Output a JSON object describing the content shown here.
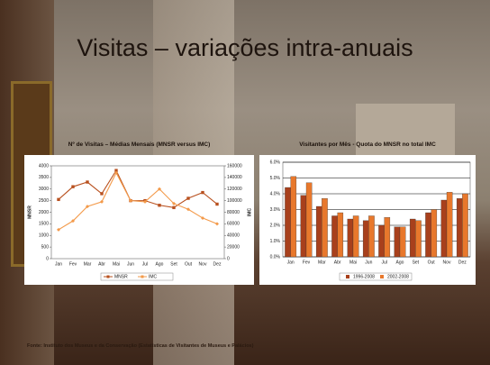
{
  "title": "Visitas – variações intra-anuais",
  "footer": "Fonte: Instituto dos Museus e da Conservação (Estatísticas de Visitantes de Museus e Palácios)",
  "chart_data": [
    {
      "type": "line",
      "title": "Nº de Visitas – Médias Mensais (MNSR versus IMC)",
      "y_label": "MNSR",
      "y2_label": "IMC",
      "categories": [
        "Jan",
        "Fev",
        "Mar",
        "Abr",
        "Mai",
        "Jun",
        "Jul",
        "Ago",
        "Set",
        "Out",
        "Nov",
        "Dez"
      ],
      "ylim": [
        0,
        4000
      ],
      "yticks": [
        0,
        500,
        1000,
        1500,
        2000,
        2500,
        3000,
        3500,
        4000
      ],
      "y2lim": [
        0,
        160000
      ],
      "y2ticks": [
        0,
        20000,
        40000,
        60000,
        80000,
        100000,
        120000,
        140000,
        160000
      ],
      "grid": false,
      "series": [
        {
          "name": "MNSR",
          "color": "#b8501e",
          "marker": "square",
          "values": [
            2550,
            3100,
            3300,
            2800,
            3800,
            2500,
            2500,
            2300,
            2200,
            2600,
            2850,
            2350
          ]
        },
        {
          "name": "IMC",
          "color": "#f39a4a",
          "marker": "diamond",
          "axis": "y2",
          "values": [
            50000,
            65000,
            90000,
            98000,
            148000,
            100000,
            98000,
            120000,
            95000,
            85000,
            70000,
            60000
          ]
        }
      ]
    },
    {
      "type": "bar",
      "title": "Visitantes por Mês - Quota do MNSR no total IMC",
      "categories": [
        "Jan",
        "Fev",
        "Mar",
        "Abr",
        "Mai",
        "Jun",
        "Jul",
        "Ago",
        "Set",
        "Out",
        "Nov",
        "Dez"
      ],
      "ylim": [
        0,
        6
      ],
      "yticks": [
        {
          "value": 0,
          "label": "0.0%"
        },
        {
          "value": 1,
          "label": "1.0%"
        },
        {
          "value": 2,
          "label": "2.0%"
        },
        {
          "value": 3,
          "label": "3.0%"
        },
        {
          "value": 4,
          "label": "4.0%"
        },
        {
          "value": 5,
          "label": "5.0%"
        },
        {
          "value": 6,
          "label": "6.0%"
        }
      ],
      "grid": true,
      "series": [
        {
          "name": "1996-2008",
          "color": "#a8401c",
          "values": [
            4.4,
            3.9,
            3.2,
            2.6,
            2.4,
            2.3,
            2.0,
            1.9,
            2.4,
            2.8,
            3.6,
            3.7
          ]
        },
        {
          "name": "2002-2008",
          "color": "#e8782c",
          "values": [
            5.1,
            4.7,
            3.7,
            2.8,
            2.6,
            2.6,
            2.5,
            1.9,
            2.3,
            3.0,
            4.1,
            4.0
          ]
        }
      ]
    }
  ]
}
